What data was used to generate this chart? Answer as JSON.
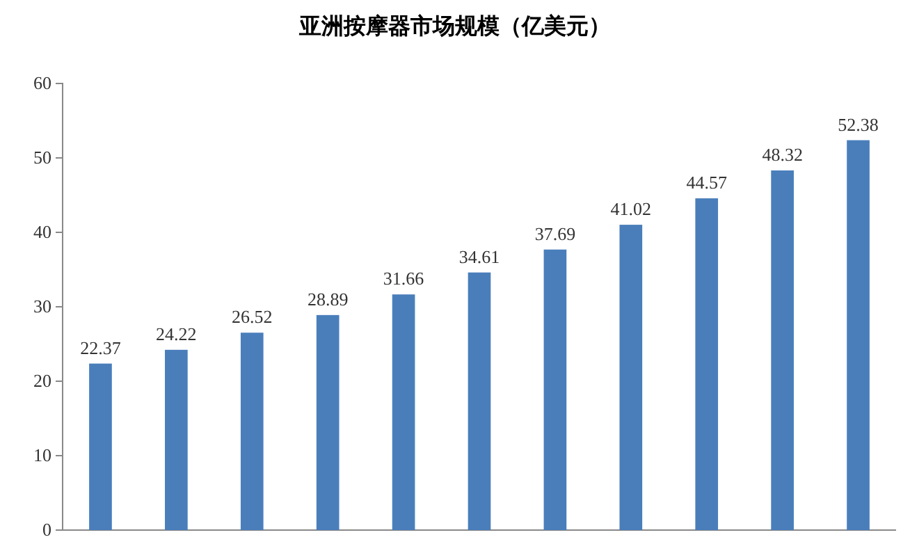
{
  "chart_data": {
    "type": "bar",
    "title": "亚洲按摩器市场规模（亿美元）",
    "categories": [
      null,
      null,
      null,
      null,
      null,
      null,
      null,
      null,
      null,
      null,
      null
    ],
    "values": [
      22.37,
      24.22,
      26.52,
      28.89,
      31.66,
      34.61,
      37.69,
      41.02,
      44.57,
      48.32,
      52.38
    ],
    "color": "#4a7ebb",
    "ylim": [
      0,
      60
    ],
    "yticks": [
      0,
      10,
      20,
      30,
      40,
      50,
      60
    ],
    "data_labels": true
  }
}
